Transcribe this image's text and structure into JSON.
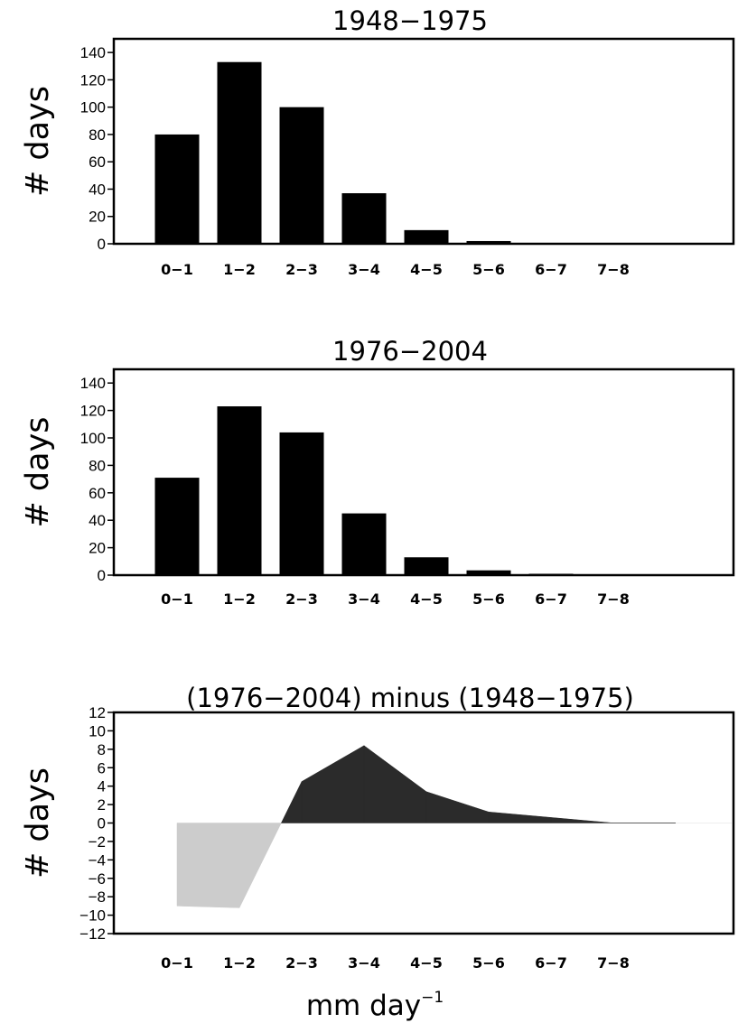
{
  "chart_data": [
    {
      "type": "bar",
      "title": "1948−1975",
      "ylabel": "# days",
      "xlabel": "",
      "categories": [
        "0−1",
        "1−2",
        "2−3",
        "3−4",
        "4−5",
        "5−6",
        "6−7",
        "7−8",
        ""
      ],
      "values": [
        80,
        133,
        100,
        37,
        10,
        2,
        0.3,
        0.2,
        0
      ],
      "ylim": [
        0,
        150
      ],
      "yticks": [
        0,
        20,
        40,
        60,
        80,
        100,
        120,
        140
      ],
      "bar_color": "#000000",
      "grid": false
    },
    {
      "type": "bar",
      "title": "1976−2004",
      "ylabel": "# days",
      "xlabel": "",
      "categories": [
        "0−1",
        "1−2",
        "2−3",
        "3−4",
        "4−5",
        "5−6",
        "6−7",
        "7−8",
        ""
      ],
      "values": [
        71,
        123,
        104,
        45,
        13,
        3.5,
        1,
        0.3,
        0
      ],
      "ylim": [
        0,
        150
      ],
      "yticks": [
        0,
        20,
        40,
        60,
        80,
        100,
        120,
        140
      ],
      "bar_color": "#000000",
      "grid": false
    },
    {
      "type": "area",
      "title": "(1976−2004)  minus  (1948−1975)",
      "ylabel": "# days",
      "xlabel": "mm  day",
      "xlabel_superscript": "−1",
      "categories": [
        "0−1",
        "1−2",
        "2−3",
        "3−4",
        "4−5",
        "5−6",
        "6−7",
        "7−8",
        ""
      ],
      "values": [
        -9,
        -9.2,
        4.5,
        8.4,
        3.4,
        1.2,
        0.6,
        0,
        0
      ],
      "ylim": [
        -12,
        12
      ],
      "yticks": [
        -12,
        -10,
        -8,
        -6,
        -4,
        -2,
        0,
        2,
        4,
        6,
        8,
        10,
        12
      ],
      "positive_color": "#2b2b2b",
      "negative_color": "#cccccc",
      "grid": false
    }
  ]
}
